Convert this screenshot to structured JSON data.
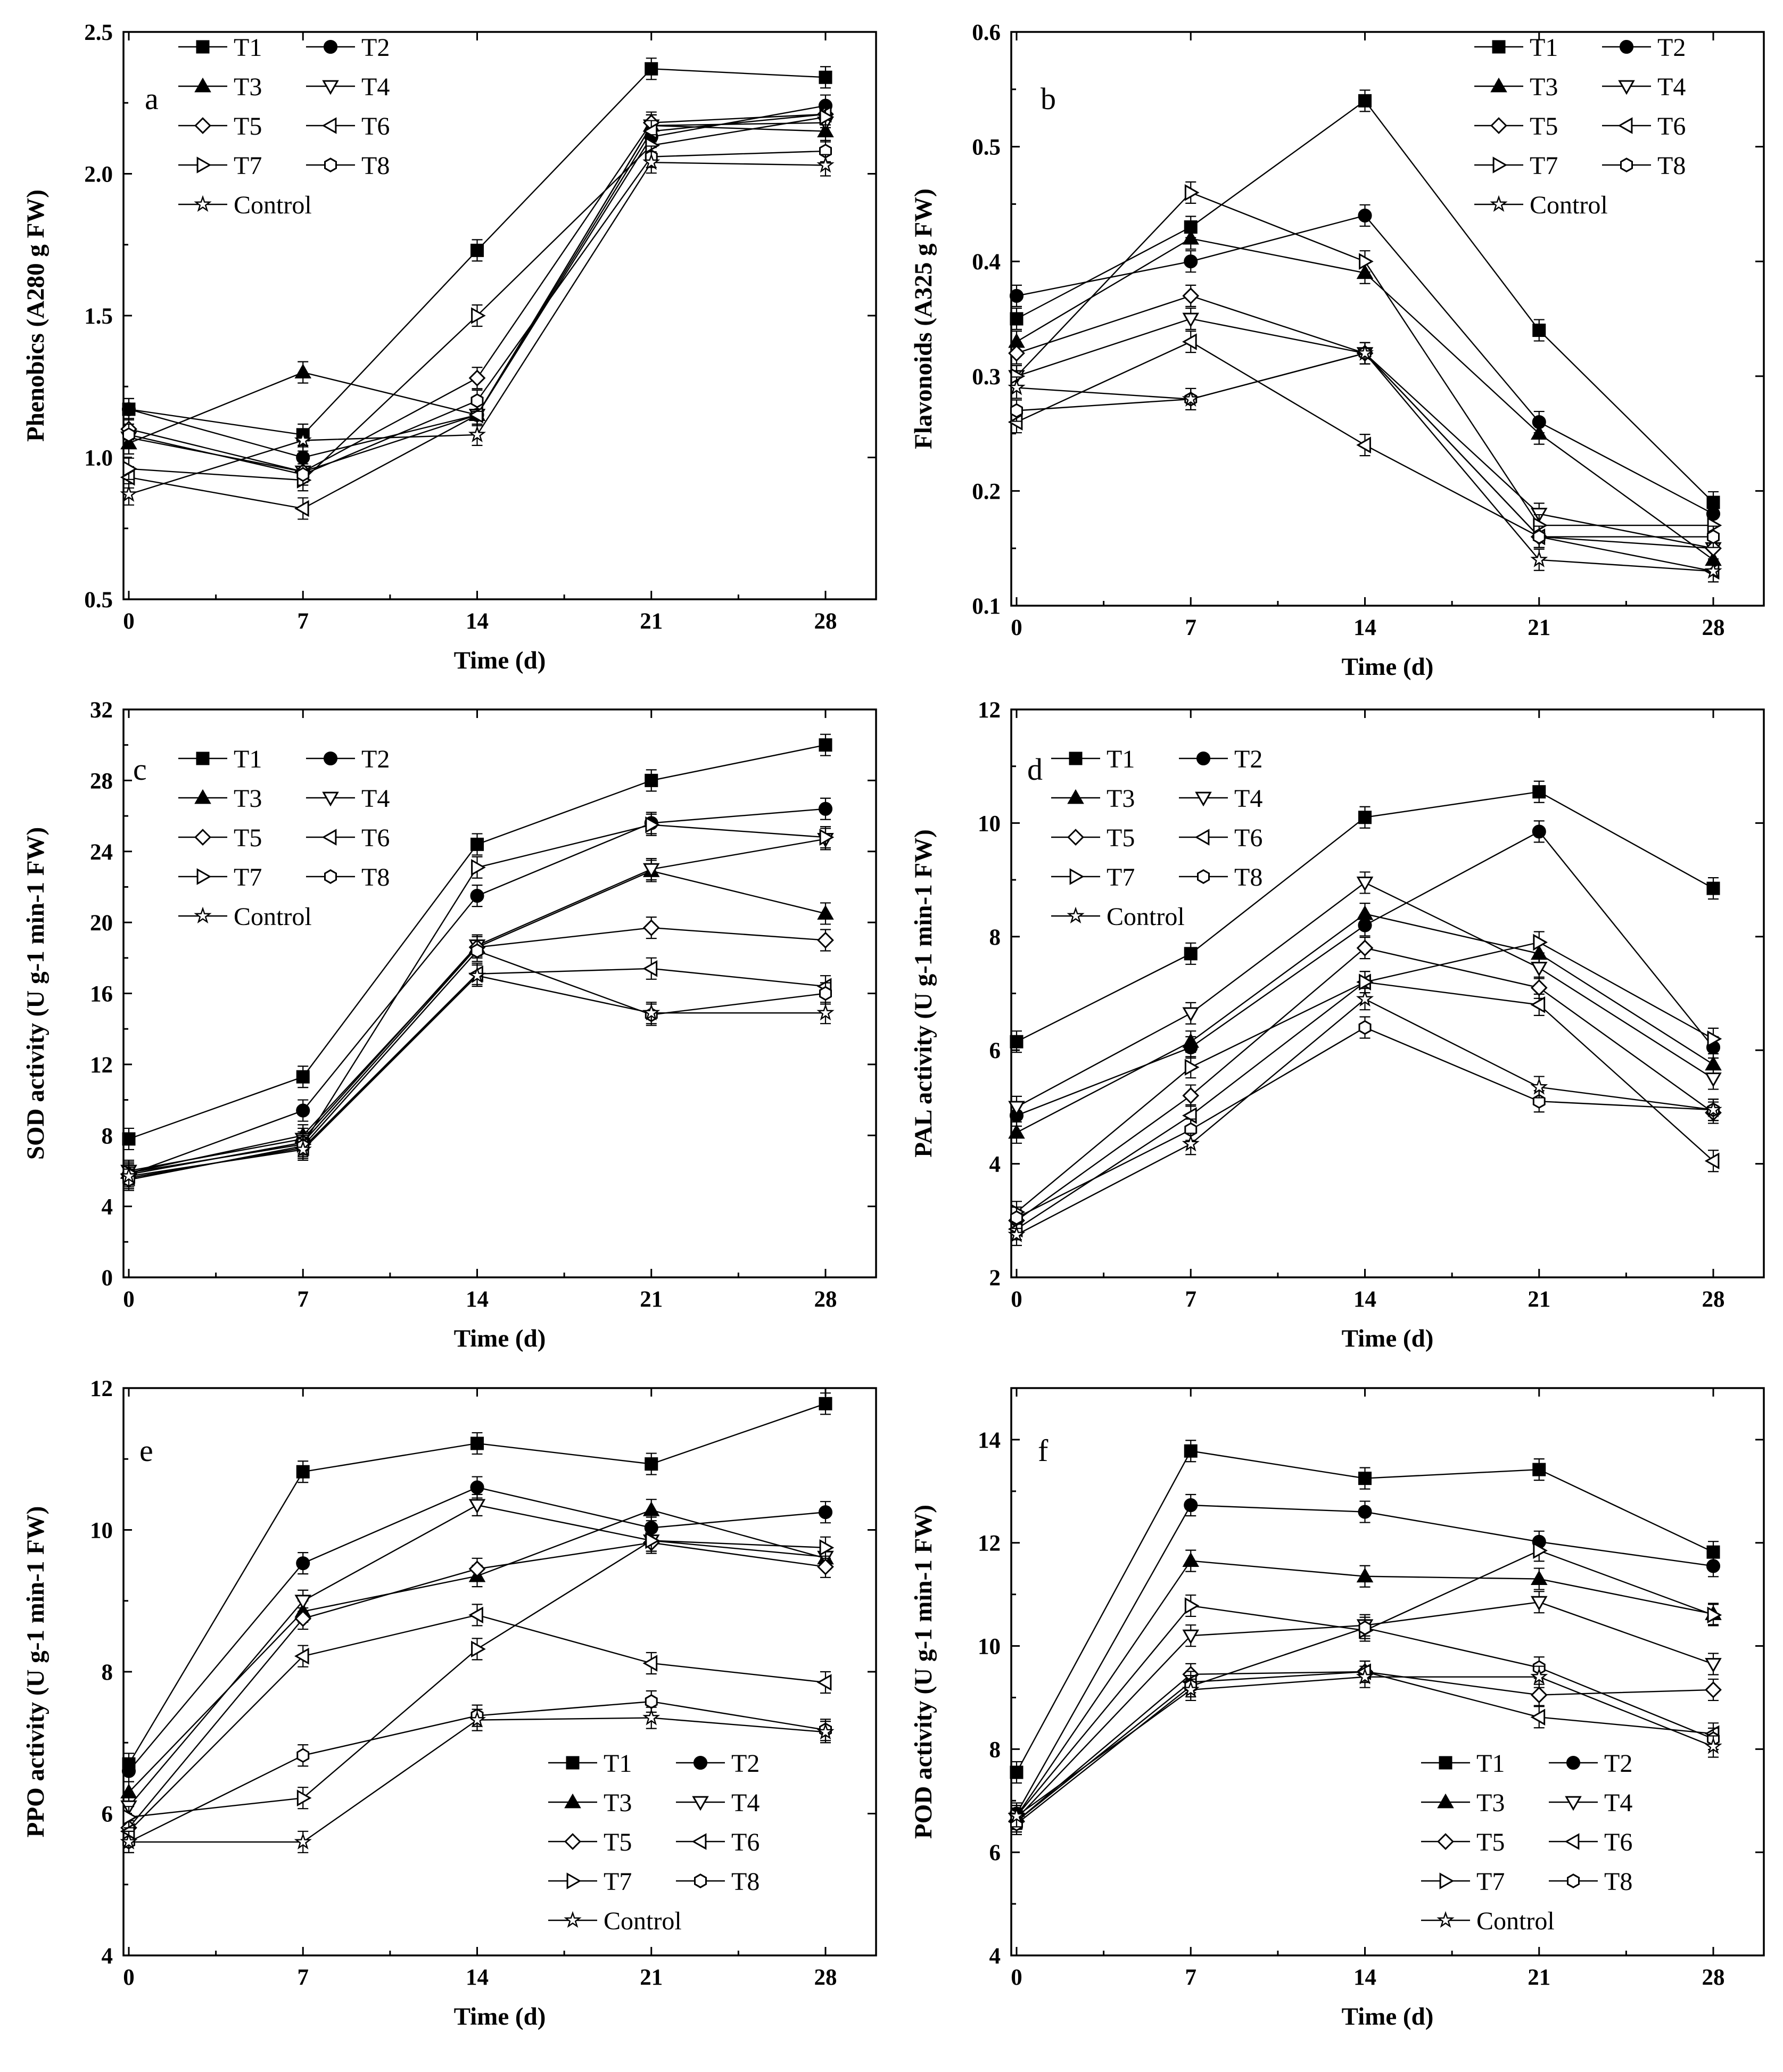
{
  "chart_data": [
    {
      "panel": "a",
      "type": "line",
      "ylabel": "Phenobics (A280 g FW)",
      "xlabel": "Time (d)",
      "x": [
        0,
        7,
        14,
        21,
        28
      ],
      "xticks": [
        "0",
        "7",
        "14",
        "21",
        "28"
      ],
      "ylim": [
        0.5,
        2.5
      ],
      "yticks": [
        "0.5",
        "1.0",
        "1.5",
        "2.0",
        "2.5"
      ],
      "legend": "top-left",
      "series": [
        {
          "name": "T1",
          "marker": "square-filled",
          "values": [
            1.17,
            1.08,
            1.73,
            2.37,
            2.34
          ]
        },
        {
          "name": "T2",
          "marker": "circle-filled",
          "values": [
            1.17,
            1.0,
            1.15,
            2.13,
            2.24
          ]
        },
        {
          "name": "T3",
          "marker": "triangle-up-filled",
          "values": [
            1.05,
            1.3,
            1.15,
            2.17,
            2.15
          ]
        },
        {
          "name": "T4",
          "marker": "triangle-down-open",
          "values": [
            1.07,
            0.95,
            1.15,
            2.17,
            2.18
          ]
        },
        {
          "name": "T5",
          "marker": "diamond-open",
          "values": [
            1.1,
            0.95,
            1.28,
            2.18,
            2.21
          ]
        },
        {
          "name": "T6",
          "marker": "triangle-left-open",
          "values": [
            0.93,
            0.82,
            1.15,
            2.15,
            2.21
          ]
        },
        {
          "name": "T7",
          "marker": "triangle-right-open",
          "values": [
            0.96,
            0.92,
            1.5,
            2.1,
            2.2
          ]
        },
        {
          "name": "T8",
          "marker": "hexagon-open",
          "values": [
            1.08,
            0.94,
            1.2,
            2.06,
            2.08
          ]
        },
        {
          "name": "Control",
          "marker": "star-open",
          "values": [
            0.87,
            1.06,
            1.08,
            2.04,
            2.03
          ]
        }
      ]
    },
    {
      "panel": "b",
      "type": "line",
      "ylabel": "Flavonoids (A325 g FW)",
      "xlabel": "Time (d)",
      "x": [
        0,
        7,
        14,
        21,
        28
      ],
      "xticks": [
        "0",
        "7",
        "14",
        "21",
        "28"
      ],
      "ylim": [
        0.1,
        0.6
      ],
      "yticks": [
        "0.1",
        "0.2",
        "0.3",
        "0.4",
        "0.5",
        "0.6"
      ],
      "legend": "top-right",
      "series": [
        {
          "name": "T1",
          "marker": "square-filled",
          "values": [
            0.35,
            0.43,
            0.54,
            0.34,
            0.19
          ]
        },
        {
          "name": "T2",
          "marker": "circle-filled",
          "values": [
            0.37,
            0.4,
            0.44,
            0.26,
            0.18
          ]
        },
        {
          "name": "T3",
          "marker": "triangle-up-filled",
          "values": [
            0.33,
            0.42,
            0.39,
            0.25,
            0.14
          ]
        },
        {
          "name": "T4",
          "marker": "triangle-down-open",
          "values": [
            0.3,
            0.35,
            0.32,
            0.18,
            0.15
          ]
        },
        {
          "name": "T5",
          "marker": "diamond-open",
          "values": [
            0.32,
            0.37,
            0.32,
            0.16,
            0.15
          ]
        },
        {
          "name": "T6",
          "marker": "triangle-left-open",
          "values": [
            0.26,
            0.33,
            0.24,
            0.16,
            0.13
          ]
        },
        {
          "name": "T7",
          "marker": "triangle-right-open",
          "values": [
            0.3,
            0.46,
            0.4,
            0.17,
            0.17
          ]
        },
        {
          "name": "T8",
          "marker": "hexagon-open",
          "values": [
            0.27,
            0.28,
            0.32,
            0.16,
            0.16
          ]
        },
        {
          "name": "Control",
          "marker": "star-open",
          "values": [
            0.29,
            0.28,
            0.32,
            0.14,
            0.13
          ]
        }
      ]
    },
    {
      "panel": "c",
      "type": "line",
      "ylabel": "SOD activity (U g-1 min-1 FW)",
      "xlabel": "Time (d)",
      "x": [
        0,
        7,
        14,
        21,
        28
      ],
      "xticks": [
        "0",
        "7",
        "14",
        "21",
        "28"
      ],
      "ylim": [
        0,
        32
      ],
      "yticks": [
        "0",
        "4",
        "8",
        "12",
        "16",
        "20",
        "24",
        "28",
        "32"
      ],
      "legend": "top-left",
      "series": [
        {
          "name": "T1",
          "marker": "square-filled",
          "values": [
            7.8,
            11.3,
            24.4,
            28.0,
            30.0
          ]
        },
        {
          "name": "T2",
          "marker": "circle-filled",
          "values": [
            5.8,
            9.4,
            21.5,
            25.6,
            26.4
          ]
        },
        {
          "name": "T3",
          "marker": "triangle-up-filled",
          "values": [
            5.9,
            8.0,
            18.6,
            22.9,
            20.5
          ]
        },
        {
          "name": "T4",
          "marker": "triangle-down-open",
          "values": [
            6.0,
            7.8,
            18.7,
            23.0,
            24.7
          ]
        },
        {
          "name": "T5",
          "marker": "diamond-open",
          "values": [
            5.8,
            7.6,
            18.6,
            19.7,
            19.0
          ]
        },
        {
          "name": "T6",
          "marker": "triangle-left-open",
          "values": [
            5.6,
            7.3,
            17.1,
            17.4,
            16.4
          ]
        },
        {
          "name": "T7",
          "marker": "triangle-right-open",
          "values": [
            5.9,
            7.5,
            23.1,
            25.5,
            24.8
          ]
        },
        {
          "name": "T8",
          "marker": "hexagon-open",
          "values": [
            5.5,
            7.4,
            18.4,
            14.8,
            16.0
          ]
        },
        {
          "name": "Control",
          "marker": "star-open",
          "values": [
            5.7,
            7.2,
            17.0,
            14.9,
            14.9
          ]
        }
      ]
    },
    {
      "panel": "d",
      "type": "line",
      "ylabel": "PAL activity (U g-1 min-1 FW)",
      "xlabel": "Time (d)",
      "x": [
        0,
        7,
        14,
        21,
        28
      ],
      "xticks": [
        "0",
        "7",
        "14",
        "21",
        "28"
      ],
      "ylim": [
        2,
        12
      ],
      "yticks": [
        "2",
        "4",
        "6",
        "8",
        "10",
        "12"
      ],
      "legend": "top-left",
      "series": [
        {
          "name": "T1",
          "marker": "square-filled",
          "values": [
            6.15,
            7.7,
            10.1,
            10.55,
            8.85
          ]
        },
        {
          "name": "T2",
          "marker": "circle-filled",
          "values": [
            4.85,
            6.05,
            8.2,
            9.85,
            6.05
          ]
        },
        {
          "name": "T3",
          "marker": "triangle-up-filled",
          "values": [
            4.55,
            6.15,
            8.4,
            7.7,
            5.75
          ]
        },
        {
          "name": "T4",
          "marker": "triangle-down-open",
          "values": [
            5.0,
            6.65,
            8.95,
            7.45,
            5.5
          ]
        },
        {
          "name": "T5",
          "marker": "diamond-open",
          "values": [
            3.0,
            5.2,
            7.8,
            7.1,
            4.9
          ]
        },
        {
          "name": "T6",
          "marker": "triangle-left-open",
          "values": [
            2.85,
            4.85,
            7.2,
            6.8,
            4.05
          ]
        },
        {
          "name": "T7",
          "marker": "triangle-right-open",
          "values": [
            3.15,
            5.7,
            7.2,
            7.9,
            6.2
          ]
        },
        {
          "name": "T8",
          "marker": "hexagon-open",
          "values": [
            3.05,
            4.6,
            6.4,
            5.1,
            4.95
          ]
        },
        {
          "name": "Control",
          "marker": "star-open",
          "values": [
            2.75,
            4.35,
            6.9,
            5.35,
            4.95
          ]
        }
      ]
    },
    {
      "panel": "e",
      "type": "line",
      "ylabel": "PPO activity (U g-1 min-1 FW)",
      "xlabel": "Time (d)",
      "x": [
        0,
        7,
        14,
        21,
        28
      ],
      "xticks": [
        "0",
        "7",
        "14",
        "21",
        "28"
      ],
      "ylim": [
        4,
        12
      ],
      "yticks": [
        "4",
        "6",
        "8",
        "10",
        "12"
      ],
      "legend": "bottom-right",
      "series": [
        {
          "name": "T1",
          "marker": "square-filled",
          "values": [
            6.7,
            10.82,
            11.22,
            10.93,
            11.78
          ]
        },
        {
          "name": "T2",
          "marker": "circle-filled",
          "values": [
            6.6,
            9.53,
            10.6,
            10.03,
            10.25
          ]
        },
        {
          "name": "T3",
          "marker": "triangle-up-filled",
          "values": [
            6.3,
            8.85,
            9.35,
            10.28,
            9.6
          ]
        },
        {
          "name": "T4",
          "marker": "triangle-down-open",
          "values": [
            6.1,
            9.0,
            10.35,
            9.85,
            9.62
          ]
        },
        {
          "name": "T5",
          "marker": "diamond-open",
          "values": [
            5.8,
            8.75,
            9.45,
            9.82,
            9.48
          ]
        },
        {
          "name": "T6",
          "marker": "triangle-left-open",
          "values": [
            5.75,
            8.22,
            8.8,
            8.12,
            7.85
          ]
        },
        {
          "name": "T7",
          "marker": "triangle-right-open",
          "values": [
            5.95,
            6.22,
            8.32,
            9.85,
            9.75
          ]
        },
        {
          "name": "T8",
          "marker": "hexagon-open",
          "values": [
            5.6,
            6.82,
            7.38,
            7.58,
            7.18
          ]
        },
        {
          "name": "Control",
          "marker": "star-open",
          "values": [
            5.6,
            5.6,
            7.32,
            7.35,
            7.15
          ]
        }
      ]
    },
    {
      "panel": "f",
      "type": "line",
      "ylabel": "POD activity (U g-1 min-1 FW)",
      "xlabel": "Time (d)",
      "x": [
        0,
        7,
        14,
        21,
        28
      ],
      "xticks": [
        "0",
        "7",
        "14",
        "21",
        "28"
      ],
      "ylim": [
        4,
        15
      ],
      "yticks": [
        "4",
        "6",
        "8",
        "10",
        "12",
        "14"
      ],
      "legend": "bottom-right",
      "series": [
        {
          "name": "T1",
          "marker": "square-filled",
          "values": [
            7.55,
            13.78,
            13.25,
            13.42,
            11.82
          ]
        },
        {
          "name": "T2",
          "marker": "circle-filled",
          "values": [
            6.75,
            12.73,
            12.6,
            12.02,
            11.55
          ]
        },
        {
          "name": "T3",
          "marker": "triangle-up-filled",
          "values": [
            6.7,
            11.65,
            11.35,
            11.3,
            10.62
          ]
        },
        {
          "name": "T4",
          "marker": "triangle-down-open",
          "values": [
            6.65,
            10.2,
            10.4,
            10.85,
            9.65
          ]
        },
        {
          "name": "T5",
          "marker": "diamond-open",
          "values": [
            6.6,
            9.45,
            9.5,
            9.05,
            9.15
          ]
        },
        {
          "name": "T6",
          "marker": "triangle-left-open",
          "values": [
            6.6,
            9.3,
            9.5,
            8.62,
            8.3
          ]
        },
        {
          "name": "T7",
          "marker": "triangle-right-open",
          "values": [
            6.7,
            10.78,
            10.3,
            11.85,
            10.6
          ]
        },
        {
          "name": "T8",
          "marker": "hexagon-open",
          "values": [
            6.55,
            9.22,
            10.35,
            9.58,
            8.2
          ]
        },
        {
          "name": "Control",
          "marker": "star-open",
          "values": [
            6.7,
            9.15,
            9.4,
            9.4,
            8.05
          ]
        }
      ]
    }
  ]
}
